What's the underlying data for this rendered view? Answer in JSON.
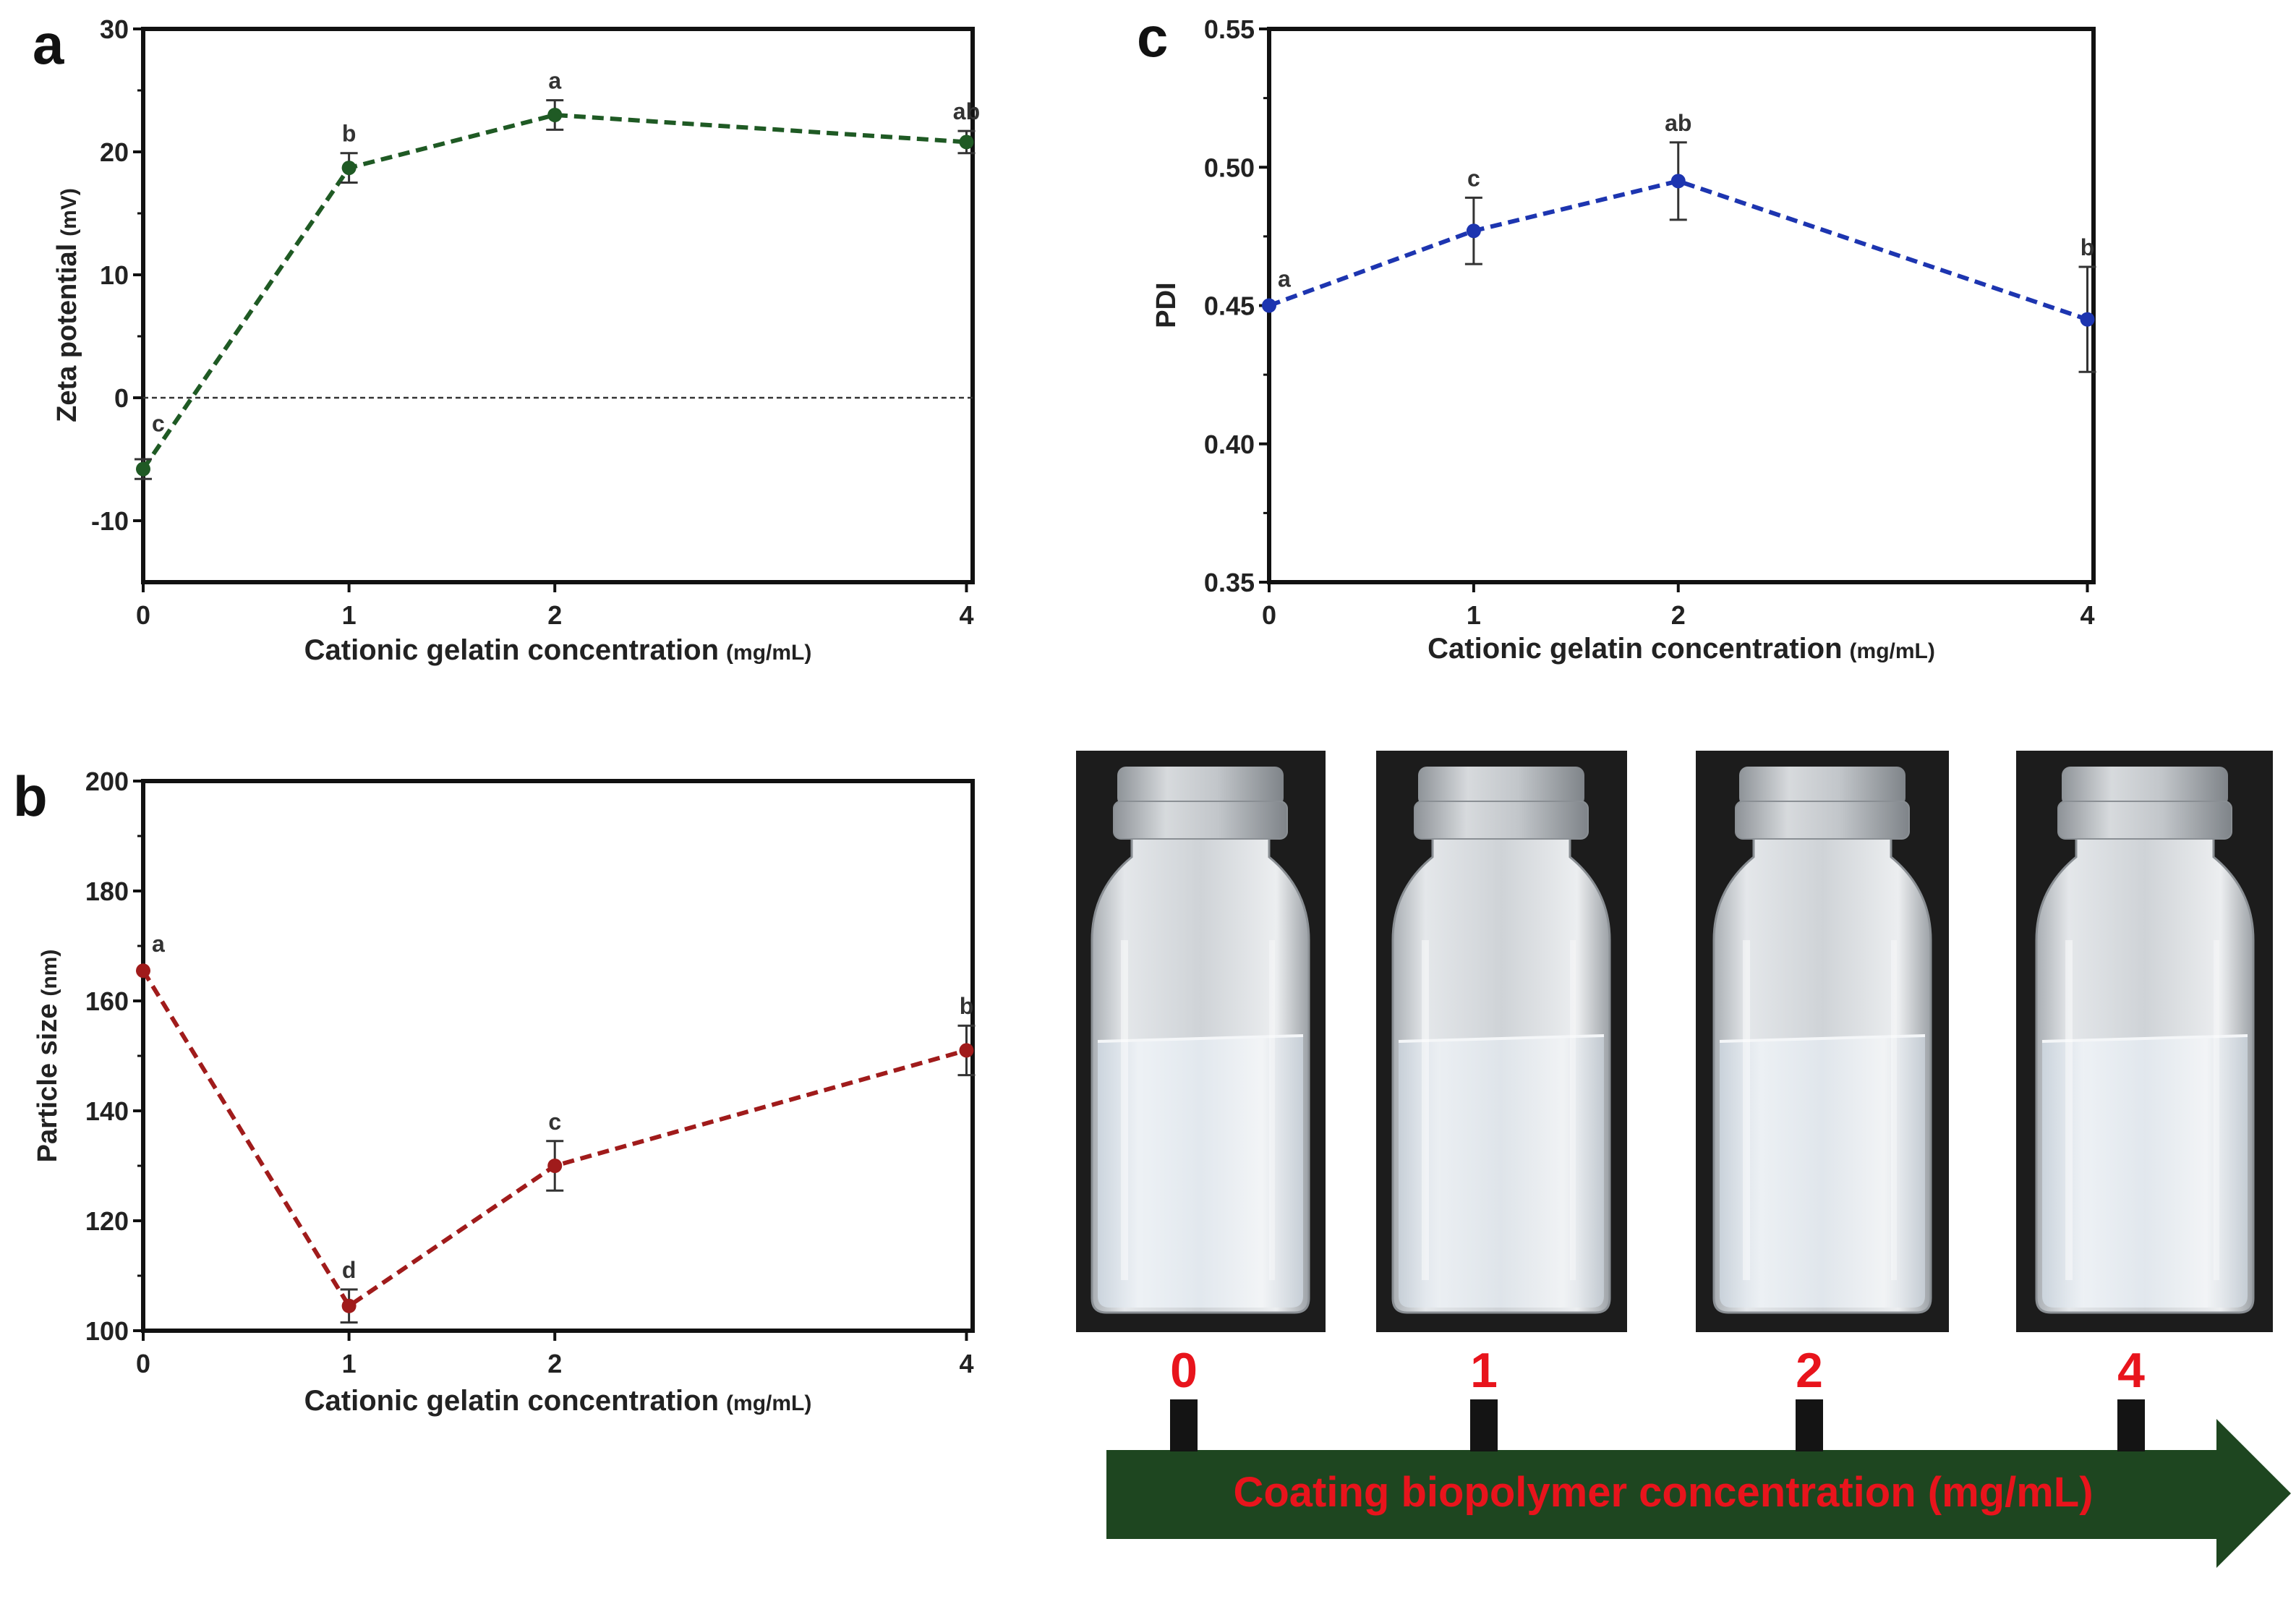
{
  "panels": [
    {
      "letter": "a",
      "chart_data": {
        "type": "line",
        "title": "",
        "xlabel": "Cationic gelatin concentration",
        "xunit": "(mg/mL)",
        "ylabel": "Zeta potential",
        "yunit": "(mV)",
        "x": [
          0,
          1,
          2,
          4
        ],
        "x_tick_labels": [
          "0",
          "1",
          "2",
          "4"
        ],
        "xlim": [
          0,
          4.03
        ],
        "ylim": [
          -15,
          30
        ],
        "y_ticks": [
          -10,
          0,
          10,
          20,
          30
        ],
        "y_tick_labels": [
          "-10",
          "0",
          "10",
          "20",
          "30"
        ],
        "series": [
          {
            "name": "Zeta potential",
            "color": "#1f5a24",
            "values": [
              -5.8,
              18.7,
              23.0,
              20.8
            ],
            "errors": [
              0.8,
              1.2,
              1.2,
              0.9
            ],
            "letters": [
              "c",
              "b",
              "a",
              "ab"
            ]
          }
        ],
        "reference_line": 0
      }
    },
    {
      "letter": "b",
      "chart_data": {
        "type": "line",
        "title": "",
        "xlabel": "Cationic gelatin concentration",
        "xunit": "(mg/mL)",
        "ylabel": "Particle size",
        "yunit": "(nm)",
        "x": [
          0,
          1,
          2,
          4
        ],
        "x_tick_labels": [
          "0",
          "1",
          "2",
          "4"
        ],
        "xlim": [
          0,
          4.03
        ],
        "ylim": [
          100,
          200
        ],
        "y_ticks": [
          100,
          120,
          140,
          160,
          180,
          200
        ],
        "y_tick_labels": [
          "100",
          "120",
          "140",
          "160",
          "180",
          "200"
        ],
        "series": [
          {
            "name": "Particle size",
            "color": "#a01b1b",
            "values": [
              165.5,
              104.5,
              130.0,
              151.0
            ],
            "errors": [
              0.0,
              3.0,
              4.5,
              4.5
            ],
            "letters": [
              "a",
              "d",
              "c",
              "b"
            ]
          }
        ]
      }
    },
    {
      "letter": "c",
      "chart_data": {
        "type": "line",
        "title": "",
        "xlabel": "Cationic gelatin concentration",
        "xunit": "(mg/mL)",
        "ylabel": "PDI",
        "yunit": "",
        "x": [
          0,
          1,
          2,
          4
        ],
        "x_tick_labels": [
          "0",
          "1",
          "2",
          "4"
        ],
        "xlim": [
          0,
          4.03
        ],
        "ylim": [
          0.35,
          0.55
        ],
        "y_ticks": [
          0.35,
          0.4,
          0.45,
          0.5,
          0.55
        ],
        "y_tick_labels": [
          "0.35",
          "0.40",
          "0.45",
          "0.50",
          "0.55"
        ],
        "series": [
          {
            "name": "PDI",
            "color": "#1d35b0",
            "values": [
              0.45,
              0.477,
              0.495,
              0.445
            ],
            "errors": [
              0.0,
              0.012,
              0.014,
              0.019
            ],
            "letters": [
              "a",
              "c",
              "ab",
              "b"
            ]
          }
        ]
      }
    }
  ],
  "photo": {
    "vial_labels": [
      "0",
      "1",
      "2",
      "4"
    ],
    "arrow_label": "Coating biopolymer concentration (mg/mL)",
    "label_color": "#e8141c",
    "arrow_color": "#1e4620",
    "photo_bg": "#1c1c1c"
  }
}
